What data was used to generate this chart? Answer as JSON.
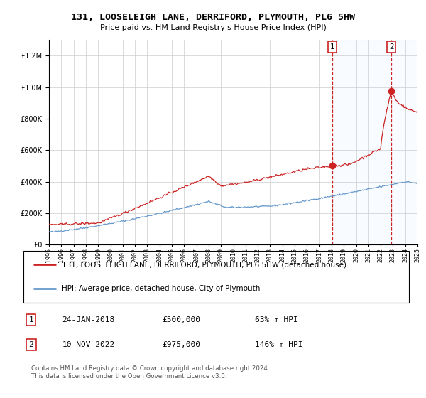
{
  "title1": "131, LOOSELEIGH LANE, DERRIFORD, PLYMOUTH, PL6 5HW",
  "title2": "Price paid vs. HM Land Registry's House Price Index (HPI)",
  "legend_label1": "131, LOOSELEIGH LANE, DERRIFORD, PLYMOUTH, PL6 5HW (detached house)",
  "legend_label2": "HPI: Average price, detached house, City of Plymouth",
  "footnote": "Contains HM Land Registry data © Crown copyright and database right 2024.\nThis data is licensed under the Open Government Licence v3.0.",
  "sale1_date": "24-JAN-2018",
  "sale1_price": "£500,000",
  "sale1_hpi": "63% ↑ HPI",
  "sale2_date": "10-NOV-2022",
  "sale2_price": "£975,000",
  "sale2_hpi": "146% ↑ HPI",
  "sale1_year": 2018.07,
  "sale1_value": 500000,
  "sale2_year": 2022.87,
  "sale2_value": 975000,
  "hpi_color": "#6699cc",
  "price_color": "#cc2222",
  "shade_color": "#ddeeff",
  "fig_bg": "#f0f0f0",
  "ylim": [
    0,
    1300000
  ],
  "xlim_start": 1995,
  "xlim_end": 2025
}
